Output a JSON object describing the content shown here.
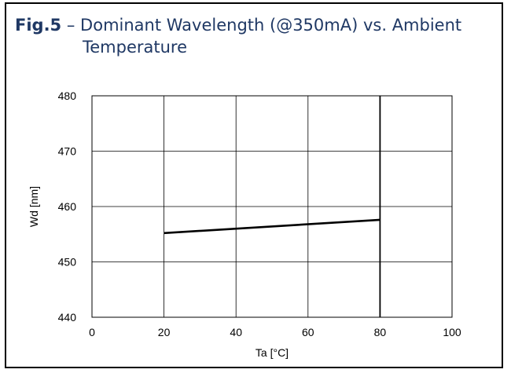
{
  "figure": {
    "number": "Fig.5",
    "dash": "–",
    "title_line1": "Dominant Wavelength (@350mA) vs. Ambient",
    "title_line2": "Temperature"
  },
  "chart_data": {
    "type": "line",
    "xlabel": "Ta [°C]",
    "ylabel": "Wd [nm]",
    "xlim": [
      0,
      100
    ],
    "ylim": [
      440,
      480
    ],
    "xticks": [
      0,
      20,
      40,
      60,
      80,
      100
    ],
    "yticks": [
      440,
      450,
      460,
      470,
      480
    ],
    "grid": true,
    "series": [
      {
        "x": [
          20,
          80
        ],
        "y": [
          455.2,
          457.6
        ]
      }
    ],
    "line_color": "#000000",
    "title_color": "#1f3864"
  }
}
